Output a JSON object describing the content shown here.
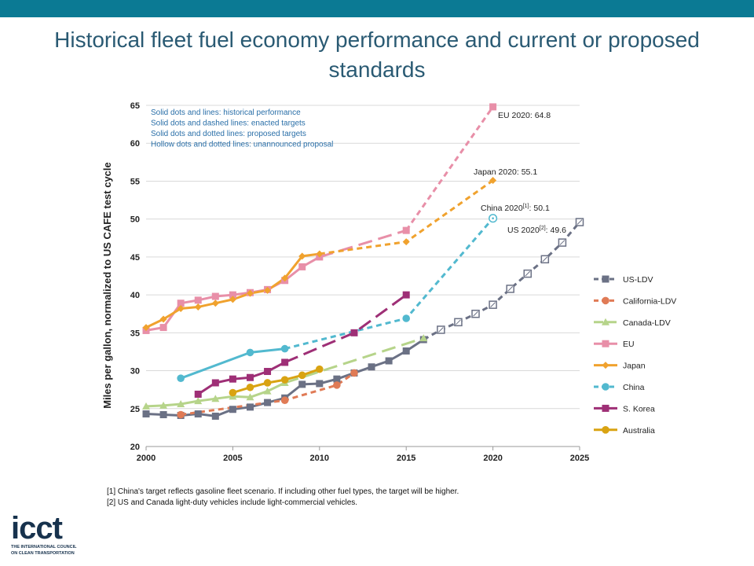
{
  "title": "Historical fleet fuel economy performance and current or proposed standards",
  "notes": [
    "Solid dots and lines: historical performance",
    "Solid dots and dashed lines: enacted targets",
    "Solid dots and dotted lines: proposed targets",
    "Hollow dots and dotted lines: unannounced proposal"
  ],
  "footnotes": {
    "fn1": "[1] China's target reflects gasoline fleet scenario. If including other fuel types, the target will be higher.",
    "fn2": "[2] US and Canada light-duty vehicles include light-commercial vehicles."
  },
  "logo": {
    "word": "icct",
    "sub_1": "THE INTERNATIONAL COUNCIL",
    "sub_2": "ON CLEAN TRANSPORTATION"
  },
  "chart_data": {
    "type": "line",
    "title": "Historical fleet fuel economy performance and current or proposed standards",
    "xlabel": "",
    "ylabel": "Miles per gallon, normalized to US CAFE test cycle",
    "xlim": [
      2000,
      2025
    ],
    "ylim": [
      20,
      65
    ],
    "x_ticks": [
      2000,
      2005,
      2010,
      2015,
      2020,
      2025
    ],
    "y_ticks": [
      20,
      25,
      30,
      35,
      40,
      45,
      50,
      55,
      60,
      65
    ],
    "grid": "horizontal",
    "legend_position": "right",
    "annotations": [
      {
        "label": "EU 2020",
        "text": "EU 2020: 64.8",
        "x": 2020,
        "y": 64.8
      },
      {
        "label": "Japan 2020",
        "text": "Japan 2020: 55.1",
        "x": 2020,
        "y": 55.1
      },
      {
        "label": "China 2020",
        "sup": "[1]",
        "value": "50.1",
        "x": 2020,
        "y": 50.1
      },
      {
        "label": "US 2020",
        "sup": "[2]",
        "value": "49.6",
        "x": 2025,
        "y": 49.6
      }
    ],
    "series": [
      {
        "name": "US-LDV",
        "color": "#6b7185",
        "marker": "square",
        "historical": [
          [
            2000,
            24.3
          ],
          [
            2001,
            24.2
          ],
          [
            2002,
            24.1
          ],
          [
            2003,
            24.3
          ],
          [
            2004,
            24.0
          ],
          [
            2005,
            24.9
          ],
          [
            2006,
            25.2
          ],
          [
            2007,
            25.8
          ],
          [
            2008,
            26.4
          ],
          [
            2009,
            28.2
          ],
          [
            2010,
            28.3
          ],
          [
            2011,
            28.9
          ],
          [
            2012,
            29.7
          ],
          [
            2013,
            30.5
          ],
          [
            2014,
            31.3
          ],
          [
            2015,
            32.6
          ],
          [
            2016,
            34.1
          ]
        ],
        "enacted": [
          [
            2016,
            34.1
          ],
          [
            2017,
            35.4
          ],
          [
            2018,
            36.4
          ],
          [
            2019,
            37.5
          ],
          [
            2020,
            38.7
          ],
          [
            2021,
            40.8
          ],
          [
            2022,
            42.8
          ],
          [
            2023,
            44.7
          ],
          [
            2024,
            46.9
          ],
          [
            2025,
            49.6
          ]
        ],
        "hollow_from": 2017
      },
      {
        "name": "California-LDV",
        "color": "#e07b56",
        "marker": "circle",
        "historical": [],
        "enacted": [
          [
            2002,
            24.2
          ],
          [
            2008,
            26.1
          ],
          [
            2011,
            28.1
          ],
          [
            2012,
            29.7
          ]
        ]
      },
      {
        "name": "Canada-LDV",
        "color": "#b6d48a",
        "marker": "triangle",
        "historical": [
          [
            2000,
            25.3
          ],
          [
            2001,
            25.4
          ],
          [
            2002,
            25.6
          ],
          [
            2003,
            26.0
          ],
          [
            2004,
            26.3
          ],
          [
            2005,
            26.6
          ],
          [
            2006,
            26.5
          ],
          [
            2007,
            27.3
          ],
          [
            2008,
            28.4
          ]
        ],
        "proposed": [
          [
            2008,
            28.4
          ],
          [
            2016,
            34.3
          ]
        ]
      },
      {
        "name": "EU",
        "color": "#e88fa8",
        "marker": "square",
        "historical": [
          [
            2000,
            35.3
          ],
          [
            2001,
            35.7
          ],
          [
            2002,
            38.9
          ],
          [
            2003,
            39.3
          ],
          [
            2004,
            39.8
          ],
          [
            2005,
            40.0
          ],
          [
            2006,
            40.3
          ],
          [
            2007,
            40.7
          ],
          [
            2008,
            41.9
          ],
          [
            2009,
            43.7
          ],
          [
            2010,
            45.0
          ]
        ],
        "proposed": [
          [
            2010,
            45.0
          ],
          [
            2015,
            48.5
          ]
        ],
        "enacted": [
          [
            2015,
            48.5
          ],
          [
            2020,
            64.8
          ]
        ]
      },
      {
        "name": "Japan",
        "color": "#f0a22e",
        "marker": "diamond",
        "historical": [
          [
            2000,
            35.7
          ],
          [
            2001,
            36.8
          ],
          [
            2002,
            38.2
          ],
          [
            2003,
            38.4
          ],
          [
            2004,
            38.9
          ],
          [
            2005,
            39.4
          ],
          [
            2006,
            40.2
          ],
          [
            2007,
            40.6
          ],
          [
            2008,
            42.2
          ],
          [
            2009,
            45.1
          ],
          [
            2010,
            45.4
          ]
        ],
        "enacted": [
          [
            2010,
            45.4
          ],
          [
            2015,
            47.0
          ],
          [
            2020,
            55.1
          ]
        ]
      },
      {
        "name": "China",
        "color": "#52b9cf",
        "marker": "circle",
        "historical": [
          [
            2002,
            29.0
          ],
          [
            2006,
            32.4
          ],
          [
            2008,
            32.9
          ]
        ],
        "enacted": [
          [
            2008,
            32.9
          ],
          [
            2015,
            36.9
          ],
          [
            2020,
            50.1
          ]
        ],
        "hollow_from": 2020
      },
      {
        "name": "S. Korea",
        "color": "#9e2f76",
        "marker": "square",
        "historical": [
          [
            2003,
            26.9
          ],
          [
            2004,
            28.4
          ],
          [
            2005,
            28.9
          ],
          [
            2006,
            29.1
          ],
          [
            2007,
            29.9
          ],
          [
            2008,
            31.1
          ]
        ],
        "proposed": [
          [
            2008,
            31.1
          ],
          [
            2012,
            35.0
          ],
          [
            2015,
            40.0
          ]
        ]
      },
      {
        "name": "Australia",
        "color": "#d9a312",
        "marker": "circle",
        "historical": [
          [
            2005,
            27.1
          ],
          [
            2006,
            27.8
          ],
          [
            2007,
            28.4
          ],
          [
            2008,
            28.8
          ],
          [
            2009,
            29.4
          ],
          [
            2010,
            30.2
          ]
        ]
      }
    ]
  }
}
